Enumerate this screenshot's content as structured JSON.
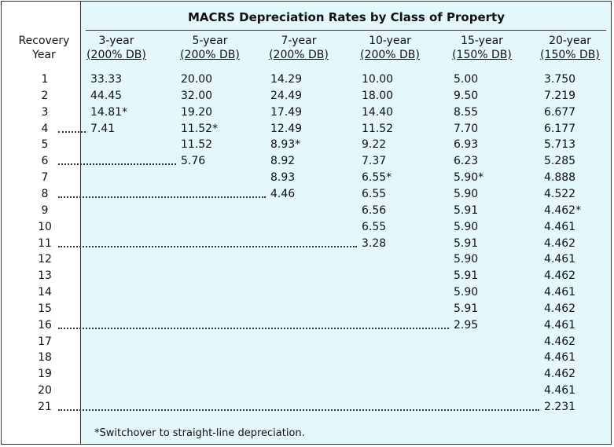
{
  "title": "MACRS Depreciation Rates by Class of Property",
  "row_header": {
    "line1": "Recovery",
    "line2": "Year"
  },
  "columns": [
    {
      "line1": "3-year",
      "line2": "(200% DB)"
    },
    {
      "line1": "5-year",
      "line2": "(200% DB)"
    },
    {
      "line1": "7-year",
      "line2": "(200% DB)"
    },
    {
      "line1": "10-year",
      "line2": "(200% DB)"
    },
    {
      "line1": "15-year",
      "line2": "(150% DB)"
    },
    {
      "line1": "20-year",
      "line2": "(150% DB)"
    }
  ],
  "years": [
    "1",
    "2",
    "3",
    "4",
    "5",
    "6",
    "7",
    "8",
    "9",
    "10",
    "11",
    "12",
    "13",
    "14",
    "15",
    "16",
    "17",
    "18",
    "19",
    "20",
    "21"
  ],
  "rates": [
    [
      "33.33",
      "44.45",
      "14.81*",
      "7.41"
    ],
    [
      "20.00",
      "32.00",
      "19.20",
      "11.52*",
      "11.52",
      "5.76"
    ],
    [
      "14.29",
      "24.49",
      "17.49",
      "12.49",
      "8.93*",
      "8.92",
      "8.93",
      "4.46"
    ],
    [
      "10.00",
      "18.00",
      "14.40",
      "11.52",
      "9.22",
      "7.37",
      "6.55*",
      "6.55",
      "6.56",
      "6.55",
      "3.28"
    ],
    [
      "5.00",
      "9.50",
      "8.55",
      "7.70",
      "6.93",
      "6.23",
      "5.90*",
      "5.90",
      "5.91",
      "5.90",
      "5.91",
      "5.90",
      "5.91",
      "5.90",
      "5.91",
      "2.95"
    ],
    [
      "3.750",
      "7.219",
      "6.677",
      "6.177",
      "5.713",
      "5.285",
      "4.888",
      "4.522",
      "4.462*",
      "4.461",
      "4.462",
      "4.461",
      "4.462",
      "4.461",
      "4.462",
      "4.461",
      "4.462",
      "4.461",
      "4.462",
      "4.461",
      "2.231"
    ]
  ],
  "footnote": "*Switchover to straight-line depreciation."
}
